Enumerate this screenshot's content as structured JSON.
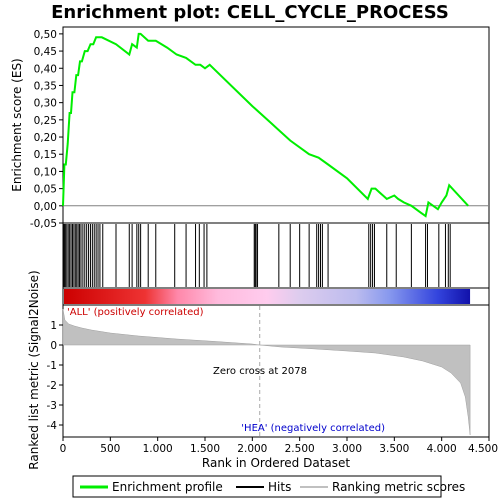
{
  "chart_data": {
    "type": "line",
    "title": "Enrichment plot: CELL_CYCLE_PROCESS",
    "top_panel": {
      "ylabel": "Enrichment score (ES)",
      "ylim": [
        -0.05,
        0.52
      ],
      "yticks": [
        -0.05,
        0.0,
        0.05,
        0.1,
        0.15,
        0.2,
        0.25,
        0.3,
        0.35,
        0.4,
        0.45,
        0.5
      ],
      "ytick_labels": [
        "-0,05",
        "0,00",
        "0,05",
        "0,10",
        "0,15",
        "0,20",
        "0,25",
        "0,30",
        "0,35",
        "0,40",
        "0,45",
        "0,50"
      ],
      "series": [
        {
          "name": "Enrichment profile",
          "color": "#00ee00",
          "x": [
            0,
            15,
            30,
            50,
            70,
            85,
            100,
            120,
            140,
            160,
            180,
            200,
            230,
            260,
            290,
            320,
            350,
            380,
            410,
            560,
            700,
            730,
            780,
            800,
            820,
            900,
            980,
            1100,
            1200,
            1300,
            1400,
            1450,
            1500,
            1550,
            2000,
            2200,
            2400,
            2600,
            2700,
            2800,
            3000,
            3220,
            3260,
            3300,
            3340,
            3420,
            3500,
            3540,
            3600,
            3680,
            3780,
            3830,
            3860,
            3960,
            4000,
            4050,
            4080,
            4280
          ],
          "y": [
            0.0,
            0.12,
            0.12,
            0.18,
            0.27,
            0.27,
            0.33,
            0.33,
            0.38,
            0.38,
            0.42,
            0.42,
            0.45,
            0.45,
            0.47,
            0.47,
            0.49,
            0.49,
            0.49,
            0.47,
            0.44,
            0.47,
            0.46,
            0.5,
            0.5,
            0.48,
            0.48,
            0.46,
            0.44,
            0.43,
            0.41,
            0.41,
            0.4,
            0.41,
            0.29,
            0.24,
            0.19,
            0.15,
            0.14,
            0.12,
            0.08,
            0.02,
            0.05,
            0.05,
            0.04,
            0.02,
            0.03,
            0.02,
            0.01,
            0.0,
            -0.02,
            -0.03,
            0.01,
            -0.01,
            0.01,
            0.03,
            0.06,
            0.0
          ]
        }
      ]
    },
    "hits": {
      "label": "Hits",
      "positions": [
        5,
        15,
        25,
        40,
        55,
        70,
        85,
        100,
        115,
        130,
        145,
        160,
        175,
        190,
        210,
        230,
        250,
        270,
        290,
        310,
        330,
        350,
        370,
        390,
        420,
        560,
        700,
        730,
        780,
        800,
        820,
        900,
        980,
        1180,
        1300,
        1400,
        1440,
        1490,
        1520,
        2020,
        2030,
        2040,
        2055,
        2280,
        2400,
        2500,
        2600,
        2680,
        2700,
        2720,
        2740,
        2800,
        3230,
        3250,
        3270,
        3290,
        3420,
        3520,
        3680,
        3830,
        3850,
        3970,
        4040,
        4070,
        4090
      ]
    },
    "bottom_panel": {
      "ylabel": "Ranked list metric (Signal2Noise)",
      "xlabel": "Rank in Ordered Dataset",
      "xlim": [
        0,
        4500
      ],
      "xticks": [
        0,
        500,
        1000,
        1500,
        2000,
        2500,
        3000,
        3500,
        4000,
        4500
      ],
      "xtick_labels": [
        "0",
        "500",
        "1.000",
        "1.500",
        "2.000",
        "2.500",
        "3.000",
        "3.500",
        "4.000",
        "4.500"
      ],
      "ylim": [
        -4.6,
        2.0
      ],
      "yticks": [
        -4,
        -3,
        -2,
        -1,
        0,
        1
      ],
      "ytick_labels": [
        "-4",
        "-3",
        "-2",
        "-1",
        "0",
        "1"
      ],
      "metric_curve": {
        "x": [
          0,
          20,
          60,
          120,
          200,
          300,
          500,
          800,
          1200,
          1600,
          2000,
          2078,
          2300,
          2600,
          3000,
          3300,
          3600,
          3800,
          4000,
          4100,
          4200,
          4250,
          4280,
          4300
        ],
        "y": [
          1.8,
          1.25,
          1.05,
          0.95,
          0.85,
          0.75,
          0.6,
          0.45,
          0.3,
          0.18,
          0.05,
          0.0,
          -0.1,
          -0.18,
          -0.3,
          -0.4,
          -0.6,
          -0.8,
          -1.1,
          -1.4,
          -1.9,
          -2.6,
          -3.6,
          -4.5
        ]
      },
      "annotations": {
        "positive": "'ALL' (positively correlated)",
        "negative": "'HEA' (negatively correlated)",
        "zero_cross": "Zero cross at 2078"
      },
      "zero_cross_rank": 2078
    },
    "legend": [
      "Enrichment profile",
      "Hits",
      "Ranking metric scores"
    ],
    "n_ranked": 4300
  }
}
